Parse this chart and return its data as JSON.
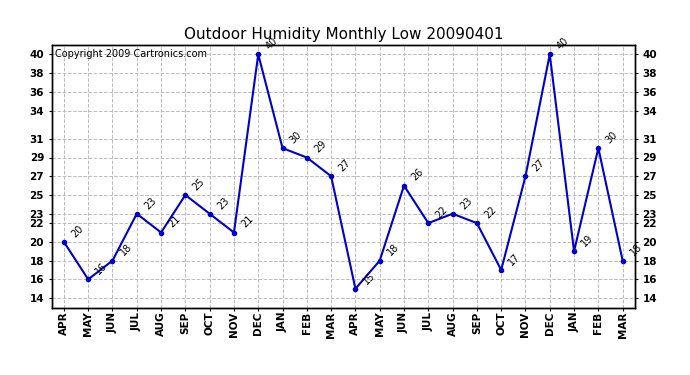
{
  "title": "Outdoor Humidity Monthly Low 20090401",
  "copyright": "Copyright 2009 Cartronics.com",
  "categories": [
    "APR",
    "MAY",
    "JUN",
    "JUL",
    "AUG",
    "SEP",
    "OCT",
    "NOV",
    "DEC",
    "JAN",
    "FEB",
    "MAR",
    "APR",
    "MAY",
    "JUN",
    "JUL",
    "AUG",
    "SEP",
    "OCT",
    "NOV",
    "DEC",
    "JAN",
    "FEB",
    "MAR"
  ],
  "values": [
    20,
    16,
    18,
    23,
    21,
    25,
    23,
    21,
    40,
    30,
    29,
    27,
    15,
    18,
    26,
    22,
    23,
    22,
    17,
    27,
    40,
    19,
    30,
    18
  ],
  "line_color": "#0000cc",
  "marker_color": "#0000cc",
  "background_color": "#ffffff",
  "grid_color": "#bbbbbb",
  "ylim": [
    13,
    41
  ],
  "yticks": [
    14,
    16,
    18,
    20,
    22,
    23,
    25,
    27,
    29,
    31,
    34,
    36,
    38,
    40
  ],
  "title_fontsize": 11,
  "copyright_fontsize": 7,
  "label_fontsize": 7,
  "tick_fontsize": 7.5
}
